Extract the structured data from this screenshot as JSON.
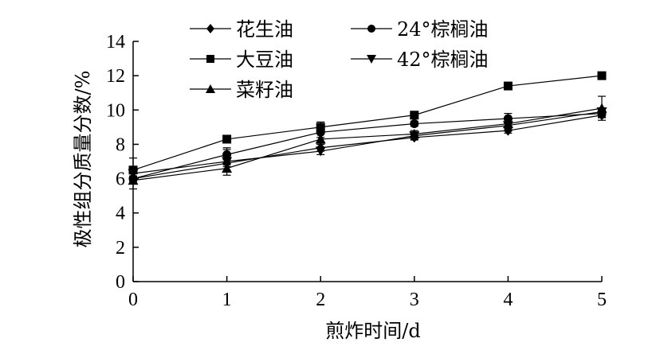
{
  "chart_data": {
    "type": "line",
    "xlabel": "煎炸时间/d",
    "ylabel": "极性组分质量分数/%",
    "x": [
      0,
      1,
      2,
      3,
      4,
      5
    ],
    "xlim": [
      0,
      5
    ],
    "ylim": [
      0,
      14
    ],
    "xticks": [
      "0",
      "1",
      "2",
      "3",
      "4",
      "5"
    ],
    "yticks": [
      "0",
      "2",
      "4",
      "6",
      "8",
      "10",
      "12",
      "14"
    ],
    "grid": false,
    "legend_position": "top",
    "series": [
      {
        "name": "花生油",
        "marker": "diamond",
        "values": [
          6.0,
          6.9,
          7.8,
          8.4,
          8.8,
          9.7
        ],
        "errors": [
          0.15,
          0.2,
          0.2,
          0.15,
          0.15,
          0.15
        ]
      },
      {
        "name": "24°棕榈油",
        "marker": "circle",
        "values": [
          6.0,
          7.4,
          8.7,
          9.2,
          9.5,
          9.8
        ],
        "errors": [
          0.15,
          0.3,
          0.3,
          0.15,
          0.3,
          0.2
        ]
      },
      {
        "name": "大豆油",
        "marker": "square",
        "values": [
          6.5,
          8.3,
          9.0,
          9.7,
          11.4,
          12.0
        ],
        "errors": [
          0.15,
          0.2,
          0.3,
          0.15,
          0.15,
          0.15
        ]
      },
      {
        "name": "42°棕榈油",
        "marker": "triangle-down",
        "values": [
          6.3,
          7.0,
          7.6,
          8.5,
          9.1,
          9.9
        ],
        "errors": [
          0.9,
          0.8,
          0.2,
          0.2,
          0.2,
          0.2
        ]
      },
      {
        "name": "菜籽油",
        "marker": "triangle-up",
        "values": [
          5.9,
          6.6,
          8.3,
          8.6,
          9.2,
          10.1
        ],
        "errors": [
          0.15,
          0.2,
          0.3,
          0.2,
          0.2,
          0.7
        ]
      }
    ]
  }
}
